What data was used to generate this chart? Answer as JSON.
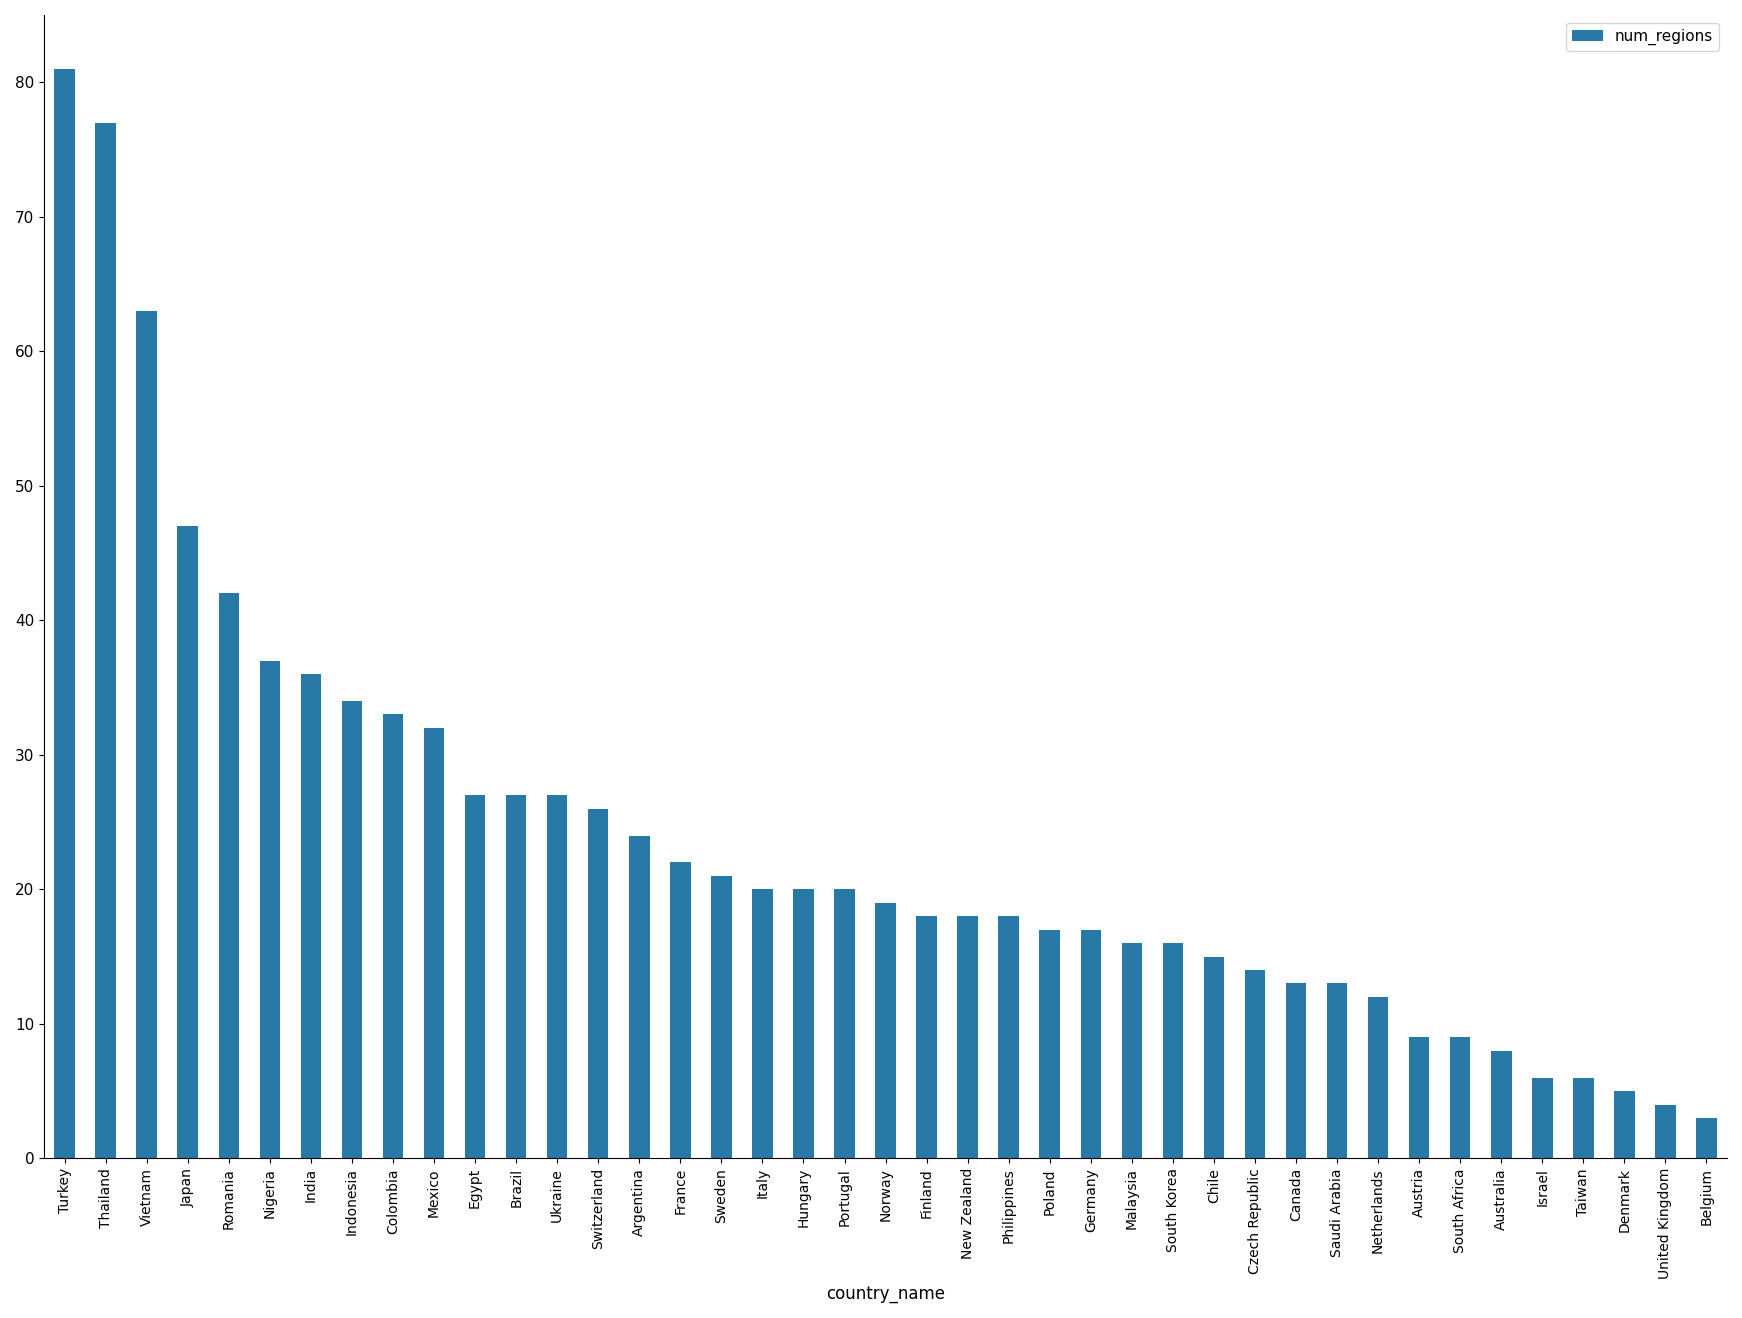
{
  "categories": [
    "Turkey",
    "Thailand",
    "Vietnam",
    "Japan",
    "Romania",
    "Nigeria",
    "India",
    "Indonesia",
    "Colombia",
    "Mexico",
    "Egypt",
    "Brazil",
    "Ukraine",
    "Switzerland",
    "Argentina",
    "France",
    "Sweden",
    "Italy",
    "Hungary",
    "Portugal",
    "Norway",
    "Finland",
    "New Zealand",
    "Philippines",
    "Poland",
    "Germany",
    "Malaysia",
    "South Korea",
    "Chile",
    "Czech Republic",
    "Canada",
    "Saudi Arabia",
    "Netherlands",
    "Austria",
    "South Africa",
    "Australia",
    "Israel",
    "Taiwan",
    "Denmark",
    "United Kingdom",
    "Belgium"
  ],
  "values": [
    81,
    77,
    63,
    47,
    42,
    37,
    36,
    34,
    33,
    32,
    27,
    27,
    27,
    26,
    24,
    22,
    21,
    20,
    20,
    20,
    19,
    18,
    18,
    18,
    17,
    17,
    16,
    16,
    15,
    14,
    13,
    13,
    12,
    9,
    9,
    8,
    6,
    6,
    5,
    4,
    3
  ],
  "bar_color": "#2878a8",
  "xlabel": "country_name",
  "ylabel": "",
  "legend_label": "num_regions",
  "background_color": "#ffffff",
  "ylim": [
    0,
    85
  ],
  "yticks": [
    0,
    10,
    20,
    30,
    40,
    50,
    60,
    70,
    80
  ],
  "figsize": [
    17.42,
    13.18
  ],
  "dpi": 100
}
